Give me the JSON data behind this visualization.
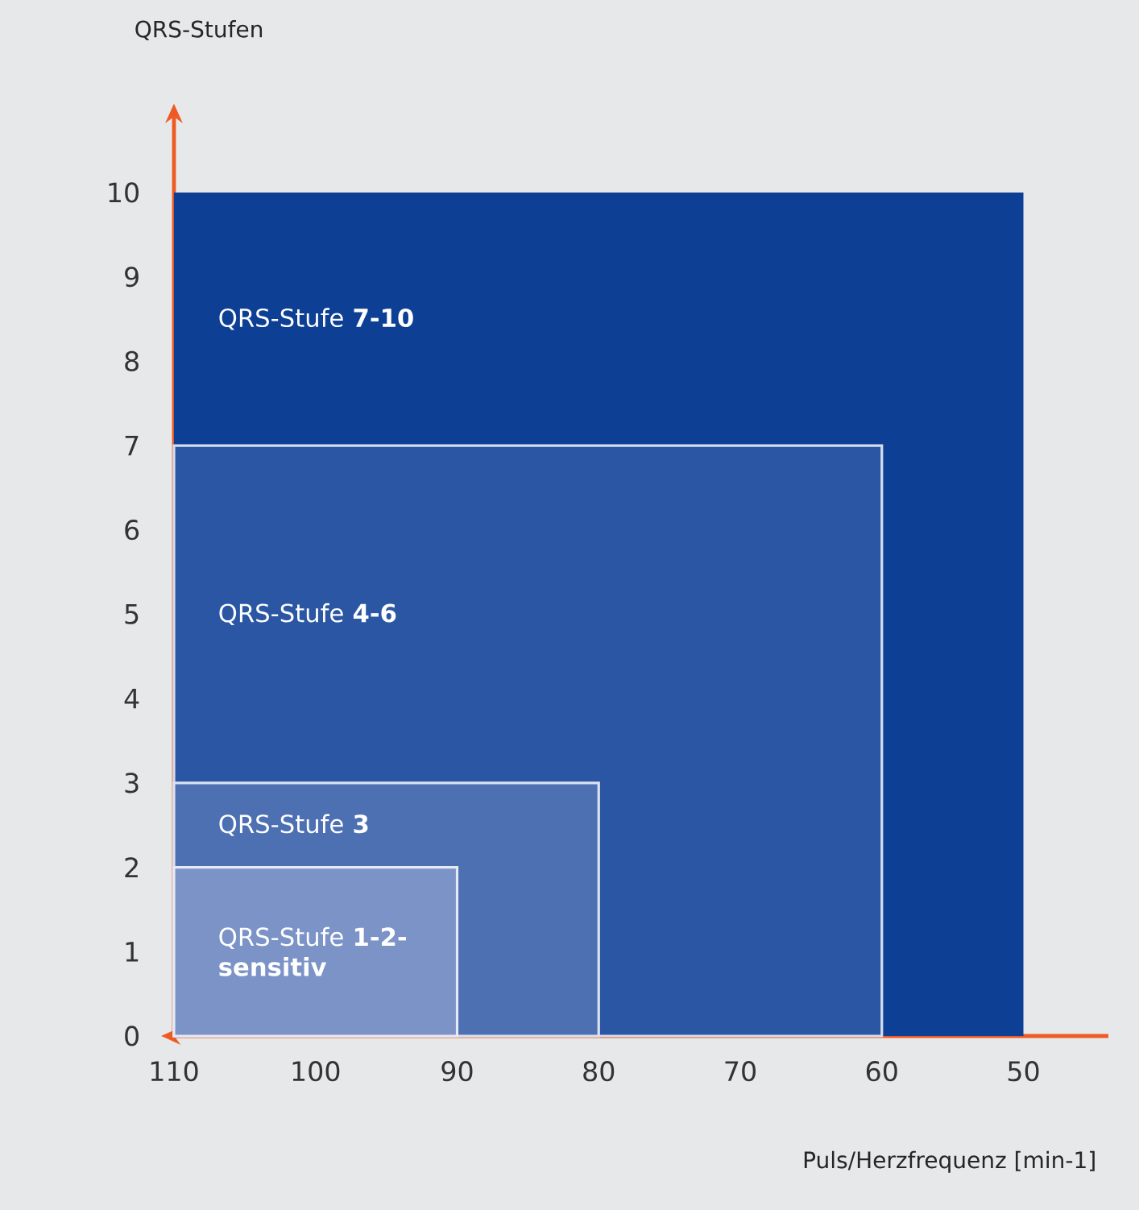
{
  "chart_data": {
    "type": "area",
    "xlabel": "Puls/Herzfrequenz [min-1]",
    "ylabel": "QRS-Stufen",
    "xlim": [
      110,
      44
    ],
    "ylim": [
      0,
      10.9
    ],
    "xticks": [
      110,
      100,
      90,
      80,
      70,
      60,
      50
    ],
    "yticks": [
      0,
      1,
      2,
      3,
      4,
      5,
      6,
      7,
      8,
      9,
      10
    ],
    "series": [
      {
        "x": [
          110,
          50
        ],
        "values": [
          10,
          10
        ],
        "color": "#0d3f95"
      },
      {
        "x": [
          110,
          60
        ],
        "values": [
          7,
          7
        ],
        "color": "#2a56a3"
      },
      {
        "x": [
          110,
          80
        ],
        "values": [
          3,
          3
        ],
        "color": "#4d70b3"
      },
      {
        "x": [
          110,
          90
        ],
        "values": [
          2,
          2
        ],
        "color": "#7b93c7"
      }
    ],
    "annotations": [
      "QRS-Stufe **7-10**",
      "QRS-Stufe **4-6**",
      "QRS-Stufe **3**",
      "QRS-Stufe **1-2- sensitiv**"
    ],
    "grid": false
  }
}
